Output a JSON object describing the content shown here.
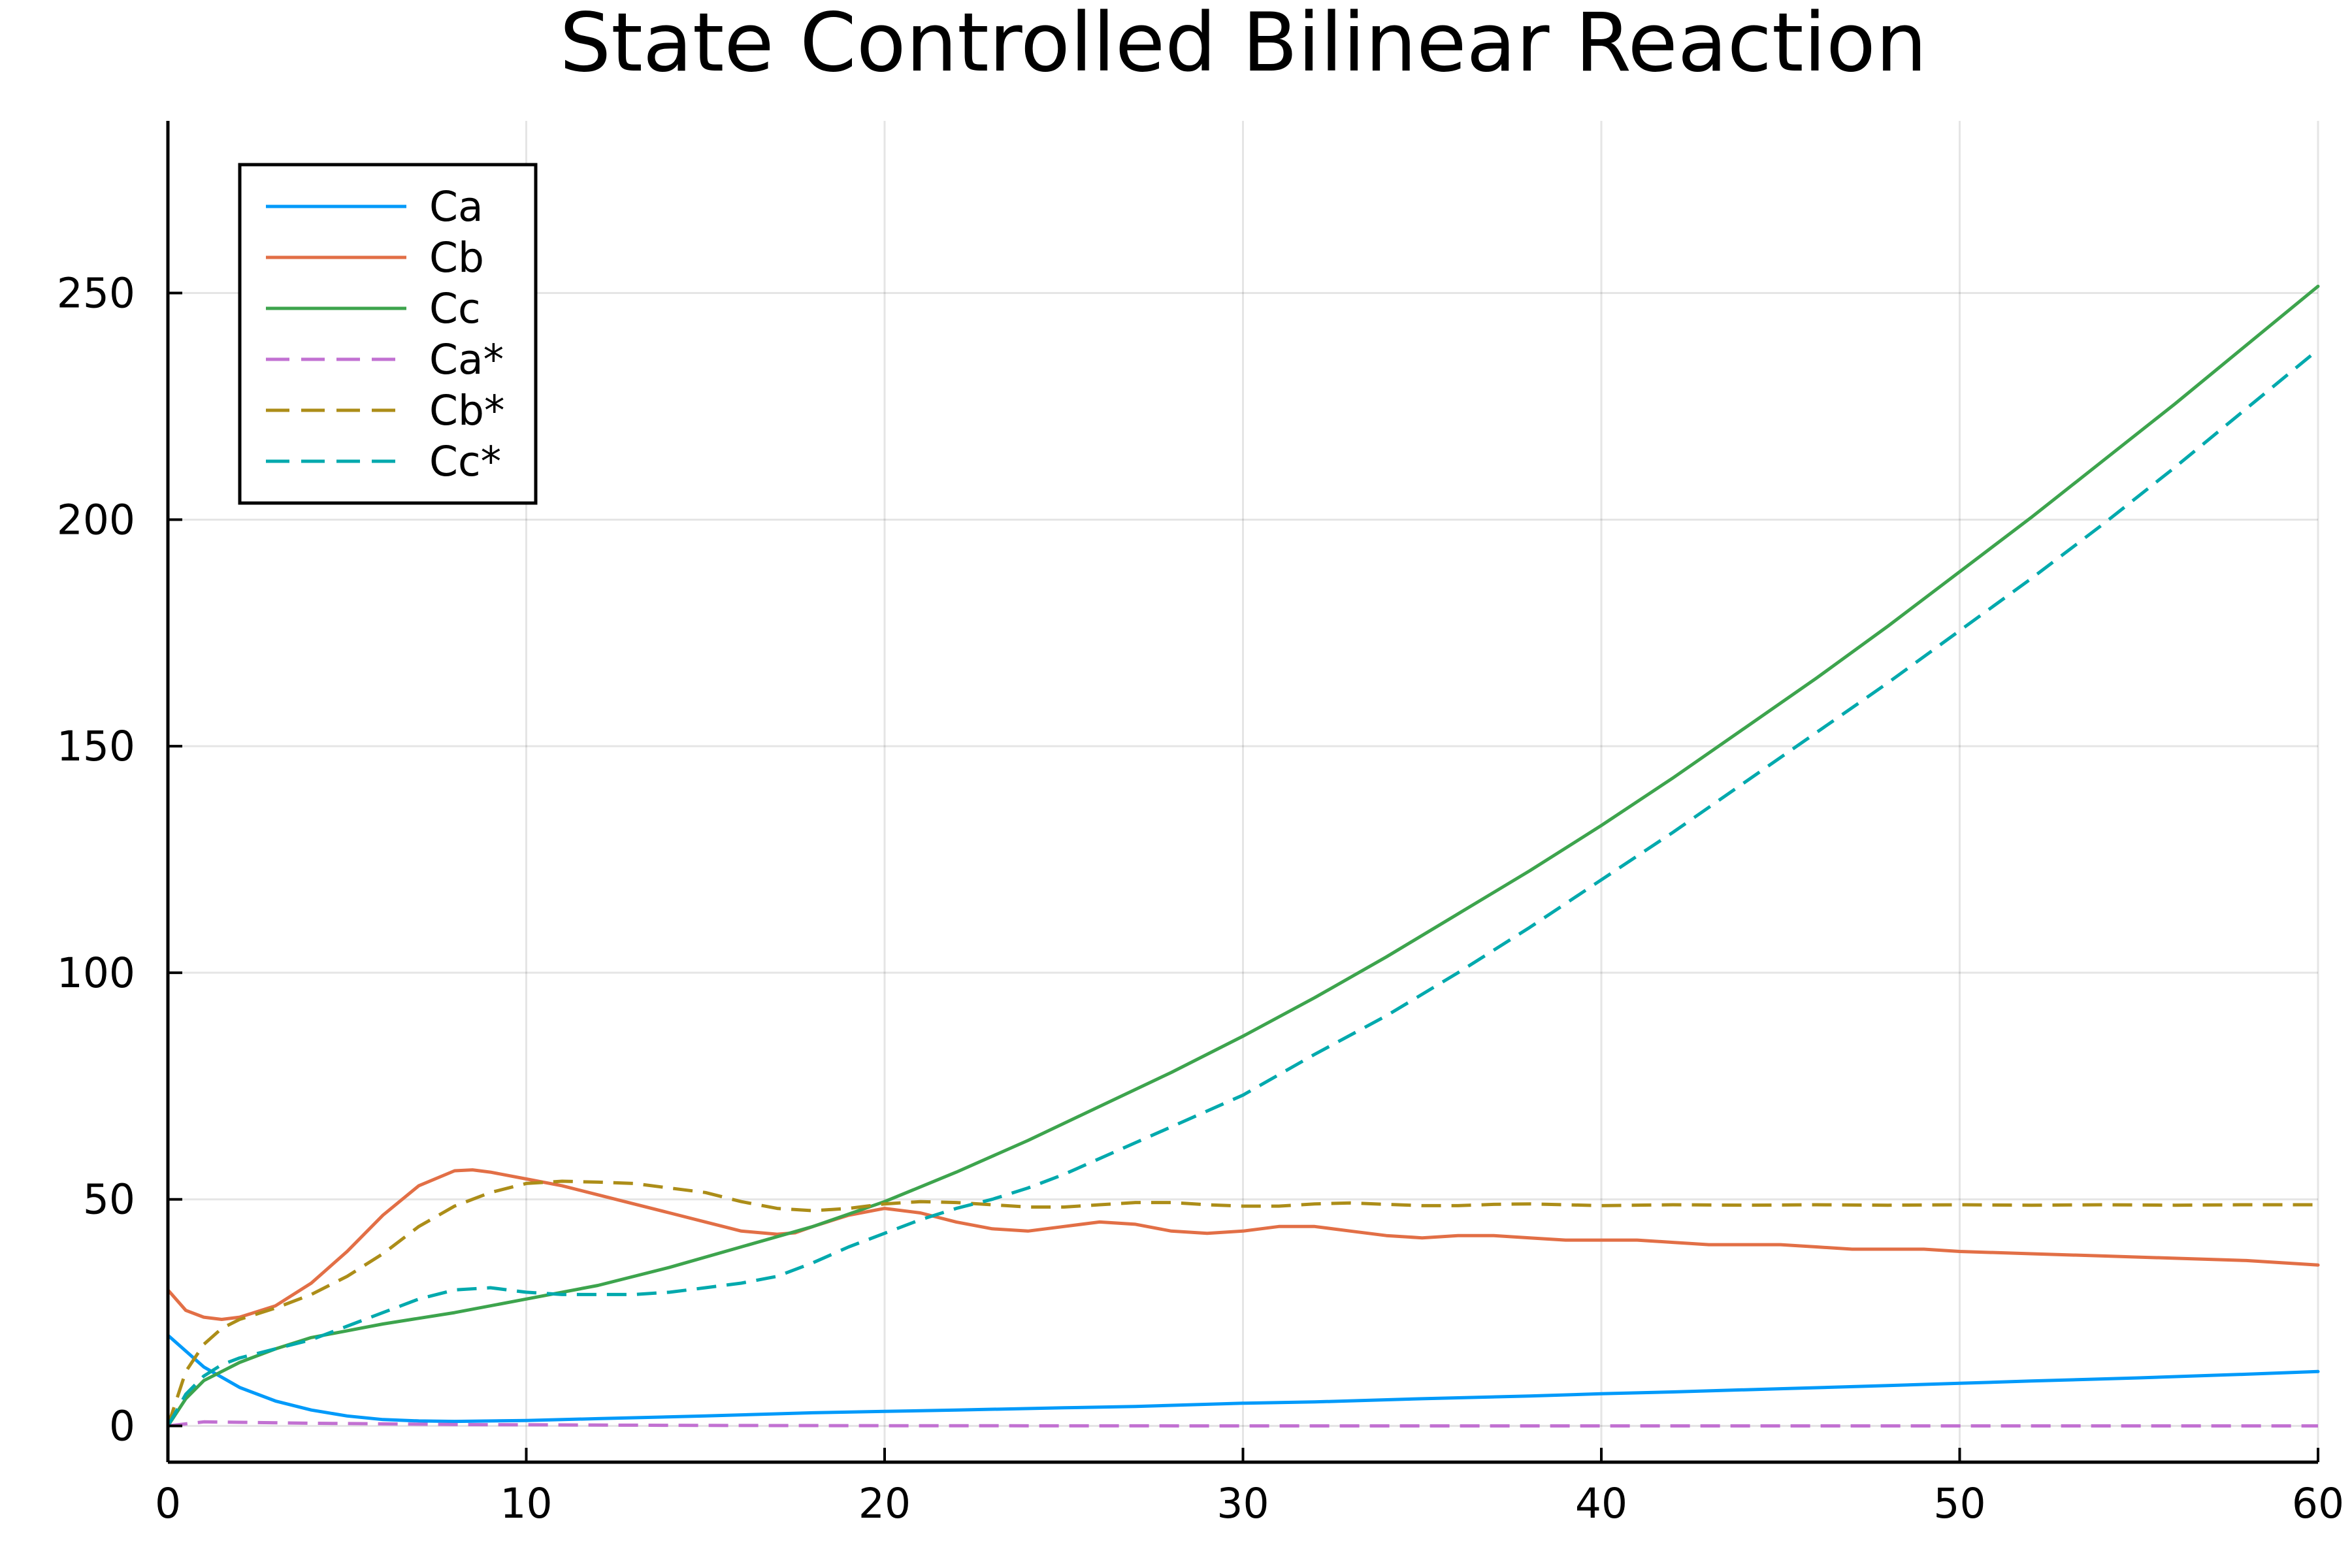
{
  "chart_data": {
    "type": "line",
    "title": "State Controlled Bilinear Reaction",
    "xlabel": "",
    "ylabel": "",
    "xlim": [
      0,
      60
    ],
    "ylim": [
      -8,
      288
    ],
    "xticks": [
      0,
      10,
      20,
      30,
      40,
      50,
      60
    ],
    "yticks": [
      0,
      50,
      100,
      150,
      200,
      250
    ],
    "xtick_labels": [
      "0",
      "10",
      "20",
      "30",
      "40",
      "50",
      "60"
    ],
    "ytick_labels": [
      "0",
      "50",
      "100",
      "150",
      "200",
      "250"
    ],
    "grid": true,
    "legend_position": "top-left",
    "series": [
      {
        "name": "Ca",
        "color": "#009AFA",
        "dash": "solid",
        "x": [
          0,
          1,
          2,
          3,
          4,
          5,
          6,
          7,
          8,
          10,
          12,
          15,
          18,
          20,
          22,
          25,
          27,
          30,
          32,
          35,
          38,
          40,
          42,
          45,
          48,
          50,
          52,
          55,
          58,
          60
        ],
        "y": [
          20,
          13,
          8.5,
          5.5,
          3.5,
          2.2,
          1.4,
          1.1,
          1.0,
          1.2,
          1.6,
          2.2,
          2.9,
          3.2,
          3.5,
          4.0,
          4.3,
          5.0,
          5.3,
          6.0,
          6.6,
          7.1,
          7.5,
          8.2,
          8.9,
          9.4,
          9.9,
          10.6,
          11.4,
          12.0
        ]
      },
      {
        "name": "Cb",
        "color": "#E26F46",
        "dash": "solid",
        "x": [
          0,
          0.5,
          1,
          1.5,
          2,
          3,
          4,
          5,
          6,
          7,
          8,
          8.5,
          9,
          10,
          11,
          12,
          13,
          14,
          15,
          16,
          17,
          17.5,
          18,
          19,
          20,
          21,
          22,
          23,
          24,
          25,
          26,
          27,
          28,
          29,
          30,
          31,
          32,
          33,
          34,
          35,
          36,
          37,
          38,
          39,
          40,
          41,
          42,
          43,
          44,
          45,
          46,
          47,
          48,
          49,
          50,
          52,
          54,
          56,
          58,
          60
        ],
        "y": [
          30,
          25.5,
          24,
          23.5,
          24,
          26.5,
          31.5,
          38.5,
          46.5,
          53,
          56.3,
          56.5,
          56,
          54.5,
          53,
          51,
          49,
          47,
          45,
          43,
          42.3,
          42.6,
          44,
          46.5,
          48,
          47,
          45,
          43.5,
          43,
          44,
          45,
          44.5,
          43,
          42.5,
          43,
          44,
          44,
          43,
          42,
          41.5,
          42,
          42,
          41.5,
          41,
          41,
          41,
          40.5,
          40,
          40,
          40,
          39.5,
          39,
          39,
          39,
          38.5,
          38,
          37.5,
          37,
          36.5,
          35.5
        ]
      },
      {
        "name": "Cc",
        "color": "#3DA44D",
        "dash": "solid",
        "x": [
          0,
          0.5,
          1,
          2,
          3,
          4,
          5,
          6,
          8,
          10,
          12,
          14,
          16,
          18,
          20,
          22,
          24,
          26,
          28,
          30,
          32,
          34,
          36,
          38,
          40,
          42,
          44,
          46,
          48,
          50,
          52,
          54,
          56,
          58,
          60
        ],
        "y": [
          0,
          6,
          10,
          14,
          17,
          19.5,
          21,
          22.5,
          25,
          28,
          31,
          35,
          39.5,
          44,
          49.5,
          56,
          63,
          70.5,
          78,
          86,
          94.5,
          103.5,
          113,
          122.5,
          132.5,
          143,
          154,
          165,
          176.5,
          188.5,
          200.5,
          213,
          225.5,
          238.5,
          251.5
        ]
      },
      {
        "name": "Ca*",
        "color": "#C271D2",
        "dash": "dashed",
        "x": [
          0,
          1,
          2,
          4,
          8,
          15,
          20,
          30,
          40,
          50,
          60
        ],
        "y": [
          0,
          0.9,
          0.8,
          0.6,
          0.3,
          0.1,
          0.05,
          0,
          0,
          0,
          0
        ]
      },
      {
        "name": "Cb*",
        "color": "#AC8D18",
        "dash": "dashed",
        "x": [
          0,
          0.5,
          1,
          1.5,
          2,
          3,
          4,
          5,
          6,
          7,
          8,
          9,
          10,
          11,
          12,
          13,
          14,
          15,
          16,
          17,
          18,
          19,
          20,
          21,
          22,
          23,
          24,
          25,
          26,
          27,
          28,
          29,
          30,
          31,
          32,
          33,
          34,
          35,
          36,
          37,
          38,
          39,
          40,
          42,
          44,
          46,
          48,
          50,
          52,
          54,
          56,
          58,
          60
        ],
        "y": [
          0,
          12,
          18,
          21.5,
          23.5,
          26,
          29,
          33,
          38,
          44,
          48.5,
          51.5,
          53.5,
          54,
          53.8,
          53.5,
          52.5,
          51.5,
          49.5,
          48,
          47.5,
          48,
          49,
          49.5,
          49.3,
          48.8,
          48.3,
          48.3,
          48.8,
          49.3,
          49.3,
          48.8,
          48.5,
          48.5,
          49,
          49.2,
          48.9,
          48.6,
          48.6,
          48.9,
          49,
          48.8,
          48.6,
          48.8,
          48.7,
          48.8,
          48.7,
          48.8,
          48.7,
          48.8,
          48.7,
          48.8,
          48.8
        ]
      },
      {
        "name": "Cc*",
        "color": "#00A9AD",
        "dash": "dashed",
        "x": [
          0,
          0.5,
          1,
          1.5,
          2,
          3,
          4,
          5,
          6,
          7,
          8,
          9,
          10,
          11,
          12,
          13,
          14,
          15,
          16,
          17,
          18,
          19,
          20,
          21,
          22,
          23,
          24,
          25,
          26,
          27,
          28,
          29,
          30,
          32,
          34,
          36,
          38,
          40,
          42,
          44,
          46,
          48,
          50,
          52,
          54,
          56,
          58,
          60
        ],
        "y": [
          0,
          7,
          11,
          13.5,
          15,
          17,
          19,
          22,
          25,
          28,
          30,
          30.5,
          29.5,
          29,
          29,
          29,
          29.5,
          30.5,
          31.5,
          33,
          36,
          39.5,
          42.5,
          45.5,
          48,
          50,
          52.5,
          55.5,
          59,
          62.5,
          66,
          69.5,
          73,
          82,
          90.5,
          100,
          110,
          120.5,
          131,
          142,
          153,
          164,
          175.5,
          187,
          199,
          211.5,
          224.5,
          237.5
        ]
      }
    ]
  }
}
